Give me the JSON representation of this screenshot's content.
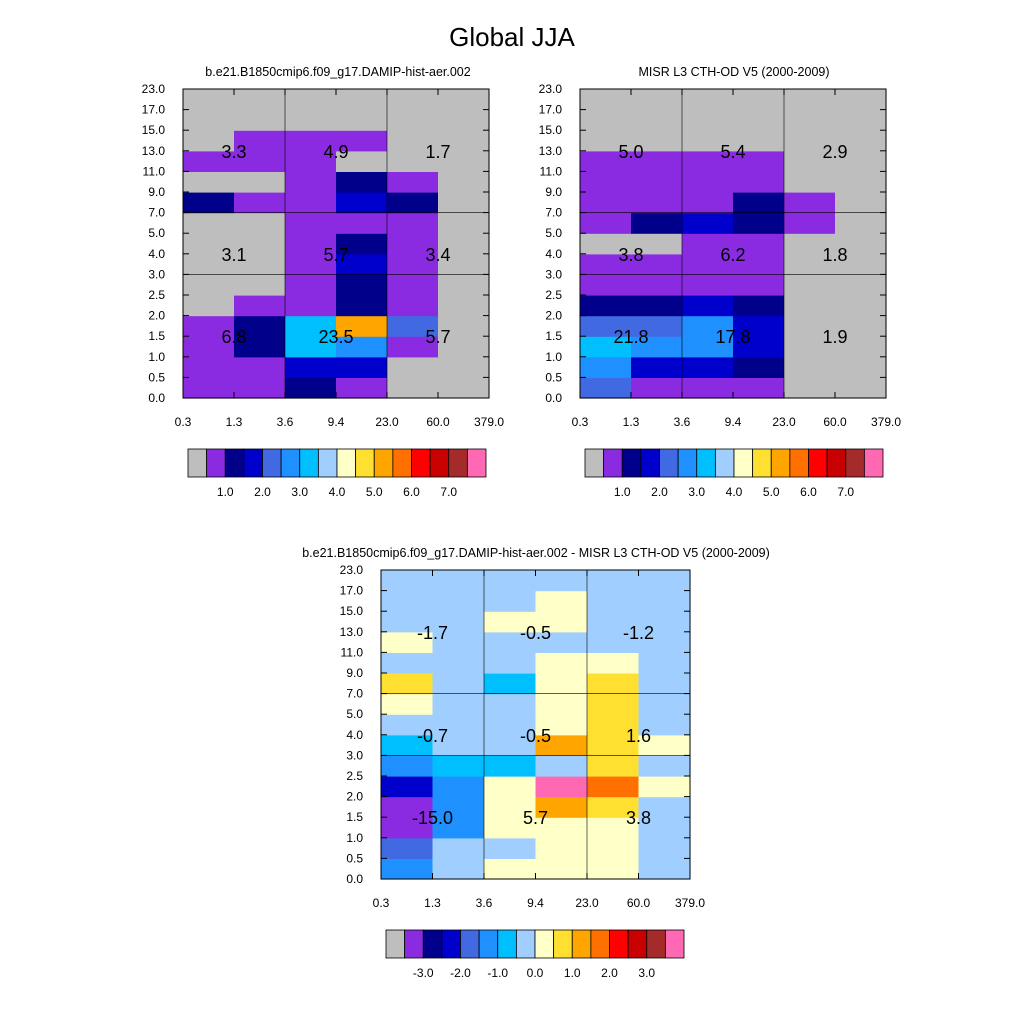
{
  "title": "Global JJA",
  "palette": [
    "#bebebe",
    "#8a2be2",
    "#00008b",
    "#0000cd",
    "#4169e1",
    "#1e90ff",
    "#00bfff",
    "#a0cfff",
    "#ffffc8",
    "#ffe030",
    "#ffa500",
    "#ff7000",
    "#ff0000",
    "#c80000",
    "#a52a2a",
    "#ff69b4"
  ],
  "x_tick_labels": [
    "0.3",
    "1.3",
    "3.6",
    "9.4",
    "23.0",
    "60.0",
    "379.0"
  ],
  "y_tick_labels": [
    "0.0",
    "0.5",
    "1.0",
    "1.5",
    "2.0",
    "2.5",
    "3.0",
    "4.0",
    "5.0",
    "7.0",
    "9.0",
    "11.0",
    "13.0",
    "15.0",
    "17.0",
    "23.0"
  ],
  "chart_data": [
    {
      "type": "heatmap",
      "title": "b.e21.B1850cmip6.f09_g17.DAMIP-hist-aer.002",
      "xlabel": "",
      "ylabel": "",
      "x_edges": [
        "0.3",
        "1.3",
        "3.6",
        "9.4",
        "23.0",
        "60.0",
        "379.0"
      ],
      "y_edges": [
        "0.0",
        "0.5",
        "1.0",
        "1.5",
        "2.0",
        "2.5",
        "3.0",
        "4.0",
        "5.0",
        "7.0",
        "9.0",
        "11.0",
        "13.0",
        "15.0",
        "17.0",
        "23.0"
      ],
      "grid": true,
      "colorbar": {
        "levels": [
          "1.0",
          "2.0",
          "3.0",
          "4.0",
          "5.0",
          "6.0",
          "7.0"
        ],
        "label_start_box": 2
      },
      "cell_color_index_rows_bottom_to_top": [
        [
          1,
          1,
          2,
          1,
          0,
          0
        ],
        [
          1,
          1,
          3,
          3,
          0,
          0
        ],
        [
          1,
          2,
          6,
          5,
          1,
          0
        ],
        [
          1,
          2,
          6,
          10,
          4,
          0
        ],
        [
          0,
          1,
          1,
          2,
          1,
          0
        ],
        [
          0,
          0,
          1,
          2,
          1,
          0
        ],
        [
          0,
          0,
          1,
          3,
          1,
          0
        ],
        [
          0,
          0,
          1,
          2,
          1,
          0
        ],
        [
          0,
          0,
          1,
          1,
          1,
          0
        ],
        [
          2,
          1,
          1,
          3,
          2,
          0
        ],
        [
          0,
          0,
          1,
          2,
          1,
          0
        ],
        [
          1,
          1,
          1,
          0,
          0,
          0
        ],
        [
          0,
          1,
          1,
          1,
          0,
          0
        ],
        [
          0,
          0,
          0,
          0,
          0,
          0
        ],
        [
          0,
          0,
          0,
          0,
          0,
          0
        ]
      ],
      "annotations": [
        {
          "text": "3.3",
          "x": "1.3",
          "y": "13.0"
        },
        {
          "text": "4.9",
          "x": "23.0",
          "y": "13.0"
        },
        {
          "text": "1.7",
          "x": "379.0",
          "y": "13.0"
        },
        {
          "text": "3.1",
          "x": "1.3",
          "y": "4.0"
        },
        {
          "text": "5.7",
          "x": "23.0",
          "y": "4.0"
        },
        {
          "text": "3.4",
          "x": "379.0",
          "y": "4.0"
        },
        {
          "text": "6.8",
          "x": "1.3",
          "y": "1.5"
        },
        {
          "text": "23.5",
          "x": "23.0",
          "y": "1.5"
        },
        {
          "text": "5.7",
          "x": "379.0",
          "y": "1.5"
        }
      ]
    },
    {
      "type": "heatmap",
      "title": "MISR L3 CTH-OD V5 (2000-2009)",
      "xlabel": "",
      "ylabel": "",
      "x_edges": [
        "0.3",
        "1.3",
        "3.6",
        "9.4",
        "23.0",
        "60.0",
        "379.0"
      ],
      "y_edges": [
        "0.0",
        "0.5",
        "1.0",
        "1.5",
        "2.0",
        "2.5",
        "3.0",
        "4.0",
        "5.0",
        "7.0",
        "9.0",
        "11.0",
        "13.0",
        "15.0",
        "17.0",
        "23.0"
      ],
      "grid": true,
      "colorbar": {
        "levels": [
          "1.0",
          "2.0",
          "3.0",
          "4.0",
          "5.0",
          "6.0",
          "7.0"
        ],
        "label_start_box": 2
      },
      "cell_color_index_rows_bottom_to_top": [
        [
          4,
          1,
          1,
          1,
          0,
          0
        ],
        [
          5,
          3,
          3,
          2,
          0,
          0
        ],
        [
          6,
          5,
          5,
          3,
          0,
          0
        ],
        [
          4,
          4,
          5,
          3,
          0,
          0
        ],
        [
          2,
          2,
          3,
          2,
          0,
          0
        ],
        [
          1,
          1,
          1,
          1,
          0,
          0
        ],
        [
          1,
          1,
          1,
          1,
          0,
          0
        ],
        [
          0,
          0,
          1,
          1,
          0,
          0
        ],
        [
          1,
          2,
          3,
          2,
          1,
          0
        ],
        [
          1,
          1,
          1,
          2,
          1,
          0
        ],
        [
          1,
          1,
          1,
          1,
          0,
          0
        ],
        [
          1,
          1,
          1,
          1,
          0,
          0
        ],
        [
          0,
          0,
          0,
          0,
          0,
          0
        ],
        [
          0,
          0,
          0,
          0,
          0,
          0
        ],
        [
          0,
          0,
          0,
          0,
          0,
          0
        ]
      ],
      "annotations": [
        {
          "text": "5.0",
          "x": "1.3",
          "y": "13.0"
        },
        {
          "text": "5.4",
          "x": "23.0",
          "y": "13.0"
        },
        {
          "text": "2.9",
          "x": "379.0",
          "y": "13.0"
        },
        {
          "text": "3.8",
          "x": "1.3",
          "y": "4.0"
        },
        {
          "text": "6.2",
          "x": "23.0",
          "y": "4.0"
        },
        {
          "text": "1.8",
          "x": "379.0",
          "y": "4.0"
        },
        {
          "text": "21.8",
          "x": "1.3",
          "y": "1.5"
        },
        {
          "text": "17.8",
          "x": "23.0",
          "y": "1.5"
        },
        {
          "text": "1.9",
          "x": "379.0",
          "y": "1.5"
        }
      ]
    },
    {
      "type": "heatmap",
      "title": "b.e21.B1850cmip6.f09_g17.DAMIP-hist-aer.002 - MISR L3 CTH-OD V5 (2000-2009)",
      "xlabel": "",
      "ylabel": "",
      "x_edges": [
        "0.3",
        "1.3",
        "3.6",
        "9.4",
        "23.0",
        "60.0",
        "379.0"
      ],
      "y_edges": [
        "0.0",
        "0.5",
        "1.0",
        "1.5",
        "2.0",
        "2.5",
        "3.0",
        "4.0",
        "5.0",
        "7.0",
        "9.0",
        "11.0",
        "13.0",
        "15.0",
        "17.0",
        "23.0"
      ],
      "grid": true,
      "colorbar": {
        "levels": [
          "-3.0",
          "-2.0",
          "-1.0",
          "0.0",
          "1.0",
          "2.0",
          "3.0"
        ],
        "label_start_box": 2
      },
      "cell_color_index_rows_bottom_to_top": [
        [
          5,
          7,
          8,
          8,
          8,
          7
        ],
        [
          4,
          7,
          7,
          8,
          8,
          7
        ],
        [
          1,
          5,
          8,
          8,
          8,
          7
        ],
        [
          1,
          5,
          8,
          10,
          9,
          7
        ],
        [
          3,
          5,
          8,
          15,
          11,
          8
        ],
        [
          5,
          6,
          6,
          7,
          9,
          7
        ],
        [
          6,
          7,
          7,
          10,
          9,
          8
        ],
        [
          7,
          7,
          7,
          8,
          9,
          7
        ],
        [
          8,
          7,
          7,
          8,
          9,
          7
        ],
        [
          9,
          7,
          6,
          8,
          9,
          7
        ],
        [
          7,
          7,
          7,
          8,
          8,
          7
        ],
        [
          8,
          7,
          7,
          7,
          7,
          7
        ],
        [
          7,
          7,
          8,
          8,
          7,
          7
        ],
        [
          7,
          7,
          7,
          8,
          7,
          7
        ],
        [
          7,
          7,
          7,
          7,
          7,
          7
        ]
      ],
      "annotations": [
        {
          "text": "-1.7",
          "x": "1.3",
          "y": "13.0"
        },
        {
          "text": "-0.5",
          "x": "23.0",
          "y": "13.0"
        },
        {
          "text": "-1.2",
          "x": "379.0",
          "y": "13.0"
        },
        {
          "text": "-0.7",
          "x": "1.3",
          "y": "4.0"
        },
        {
          "text": "-0.5",
          "x": "23.0",
          "y": "4.0"
        },
        {
          "text": "1.6",
          "x": "379.0",
          "y": "4.0"
        },
        {
          "text": "-15.0",
          "x": "1.3",
          "y": "1.5"
        },
        {
          "text": "5.7",
          "x": "23.0",
          "y": "1.5"
        },
        {
          "text": "3.8",
          "x": "379.0",
          "y": "1.5"
        }
      ]
    }
  ]
}
